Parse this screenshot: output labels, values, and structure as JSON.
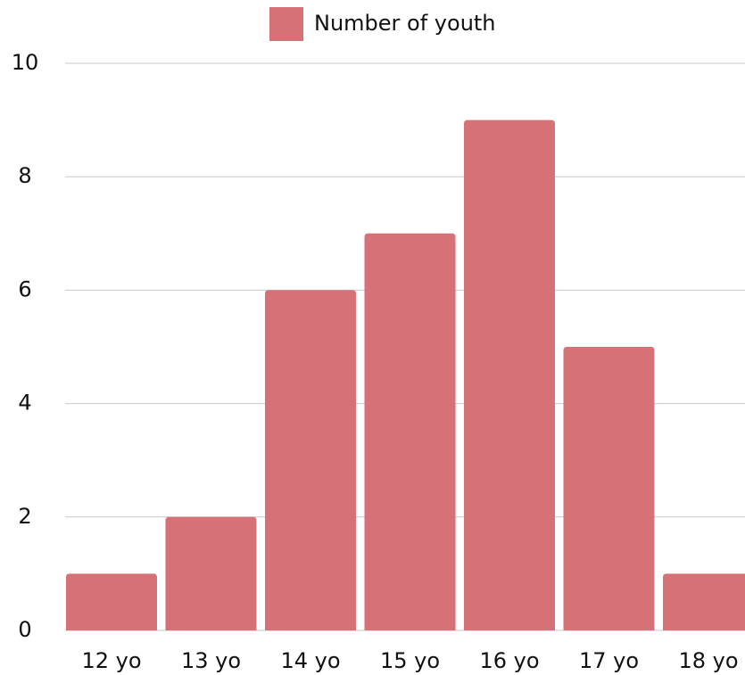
{
  "chart_data": {
    "type": "bar",
    "categories": [
      "12 yo",
      "13 yo",
      "14 yo",
      "15 yo",
      "16 yo",
      "17 yo",
      "18 yo"
    ],
    "series": [
      {
        "name": "Number of youth",
        "color": "#d57177",
        "values": [
          1,
          2,
          6,
          7,
          9,
          5,
          1
        ]
      }
    ],
    "ylim": [
      0,
      10
    ],
    "yticks": [
      0,
      2,
      4,
      6,
      8,
      10
    ],
    "grid": true,
    "legend": "top"
  }
}
